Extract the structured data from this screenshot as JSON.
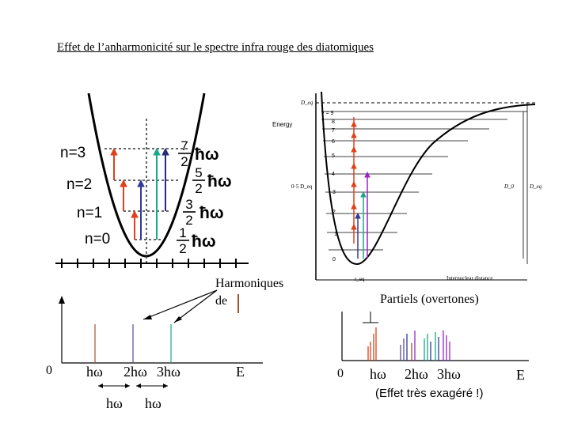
{
  "title": "Effet de l’anharmonicité sur le spectre infra rouge des diatomiques",
  "harmonic_diagram": {
    "levels": [
      {
        "label": "n=0",
        "factor_num": "1",
        "factor_den": "2",
        "unit": "ħω"
      },
      {
        "label": "n=1",
        "factor_num": "3",
        "factor_den": "2",
        "unit": "ħω"
      },
      {
        "label": "n=2",
        "factor_num": "5",
        "factor_den": "2",
        "unit": "ħω"
      },
      {
        "label": "n=3",
        "factor_num": "7",
        "factor_den": "2",
        "unit": "ħω"
      }
    ],
    "arrow_colors": [
      "#e0401a",
      "#2f3a9a",
      "#1aa88a",
      "#2a2a7a"
    ]
  },
  "morse_diagram": {
    "y_label": "Energy",
    "d_eq_label": "D_eq",
    "half_label": "0·5 D_eq",
    "v_labels": [
      "0",
      "1",
      "2",
      "3",
      "4",
      "5",
      "6",
      "7",
      "8",
      "v = 9"
    ],
    "d0_label": "D_0",
    "deq_right_label": "D_eq",
    "x_label": "Internuclear distance",
    "r_label": "r_eq"
  },
  "harmonic_spectrum": {
    "caption_line1": "Harmoniques",
    "caption_line2": "de",
    "origin": "0",
    "ticks": [
      "hω",
      "2hω",
      "3hω"
    ],
    "axis_label": "E",
    "spacing_labels": [
      "hω",
      "hω"
    ],
    "line_colors": [
      "#a0522d",
      "#5a4a9a",
      "#1aa88a"
    ]
  },
  "anharmonic_spectrum": {
    "caption": "Partiels (overtones)",
    "origin": "0",
    "ticks": [
      "hω",
      "2hω",
      "3hω"
    ],
    "axis_label": "E",
    "note": "(Effet très exagéré !)"
  }
}
